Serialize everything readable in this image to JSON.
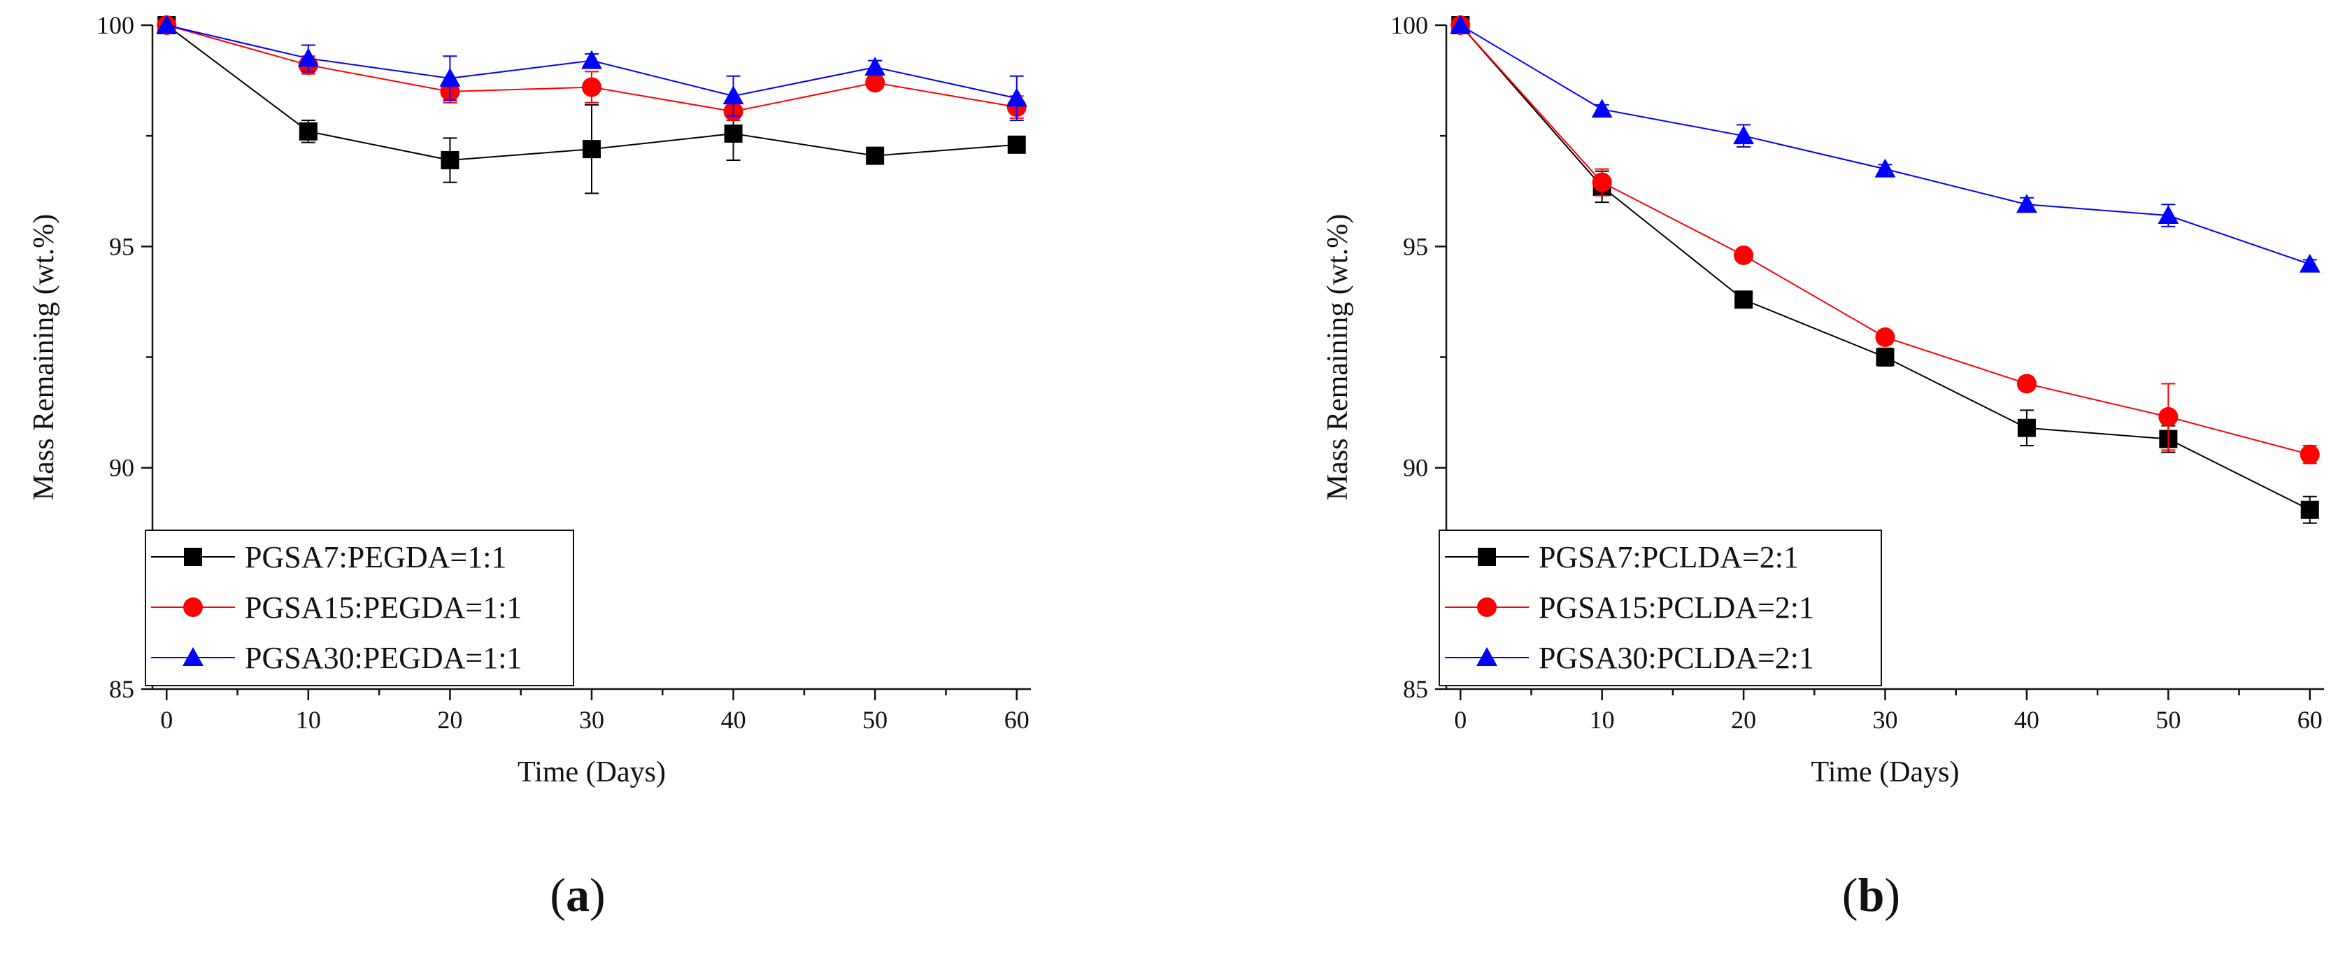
{
  "chart_data": [
    {
      "type": "line",
      "panel_label": "a",
      "xlabel": "Time (Days)",
      "ylabel": "Mass Remaining (wt.%)",
      "xlim": [
        -1,
        61
      ],
      "ylim": [
        85,
        100
      ],
      "x_ticks": [
        0,
        10,
        20,
        30,
        40,
        50,
        60
      ],
      "y_ticks": [
        85,
        90,
        95,
        100
      ],
      "legend_position": "bottom-left",
      "series": [
        {
          "name": "PGSA7:PEGDA=1:1",
          "color": "#000000",
          "marker": "square",
          "x": [
            0,
            10,
            20,
            30,
            40,
            50,
            60
          ],
          "values": [
            100,
            97.6,
            96.95,
            97.2,
            97.55,
            97.05,
            97.3
          ],
          "errors": [
            0,
            0.25,
            0.5,
            1.0,
            0.6,
            0.1,
            0.1
          ]
        },
        {
          "name": "PGSA15:PEGDA=1:1",
          "color": "#ff0000",
          "marker": "circle",
          "x": [
            0,
            10,
            20,
            30,
            40,
            50,
            60
          ],
          "values": [
            100,
            99.1,
            98.5,
            98.6,
            98.05,
            98.7,
            98.15
          ],
          "errors": [
            0,
            0.2,
            0.25,
            0.35,
            0.2,
            0.1,
            0.25
          ]
        },
        {
          "name": "PGSA30:PEGDA=1:1",
          "color": "#0000ff",
          "marker": "triangle",
          "x": [
            0,
            10,
            20,
            30,
            40,
            50,
            60
          ],
          "values": [
            100,
            99.25,
            98.8,
            99.2,
            98.4,
            99.05,
            98.35
          ],
          "errors": [
            0,
            0.3,
            0.5,
            0.15,
            0.45,
            0.15,
            0.5
          ]
        }
      ]
    },
    {
      "type": "line",
      "panel_label": "b",
      "xlabel": "Time (Days)",
      "ylabel": "Mass Remaining (wt.%)",
      "xlim": [
        -1,
        61
      ],
      "ylim": [
        85,
        100
      ],
      "x_ticks": [
        0,
        10,
        20,
        30,
        40,
        50,
        60
      ],
      "y_ticks": [
        85,
        90,
        95,
        100
      ],
      "legend_position": "bottom-left",
      "series": [
        {
          "name": "PGSA7:PCLDA=2:1",
          "color": "#000000",
          "marker": "square",
          "x": [
            0,
            10,
            20,
            30,
            40,
            50,
            60
          ],
          "values": [
            100,
            96.35,
            93.8,
            92.5,
            90.9,
            90.65,
            89.05
          ],
          "errors": [
            0,
            0.35,
            0.1,
            0.2,
            0.4,
            0.3,
            0.3
          ]
        },
        {
          "name": "PGSA15:PCLDA=2:1",
          "color": "#ff0000",
          "marker": "circle",
          "x": [
            0,
            10,
            20,
            30,
            40,
            50,
            60
          ],
          "values": [
            100,
            96.45,
            94.8,
            92.95,
            91.9,
            91.15,
            90.3
          ],
          "errors": [
            0,
            0.3,
            0.1,
            0.15,
            0.15,
            0.75,
            0.2
          ]
        },
        {
          "name": "PGSA30:PCLDA=2:1",
          "color": "#0000ff",
          "marker": "triangle",
          "x": [
            0,
            10,
            20,
            30,
            40,
            50,
            60
          ],
          "values": [
            100,
            98.1,
            97.5,
            96.75,
            95.95,
            95.7,
            94.6
          ],
          "errors": [
            0,
            0.1,
            0.25,
            0.1,
            0.15,
            0.25,
            0.1
          ]
        }
      ]
    }
  ]
}
